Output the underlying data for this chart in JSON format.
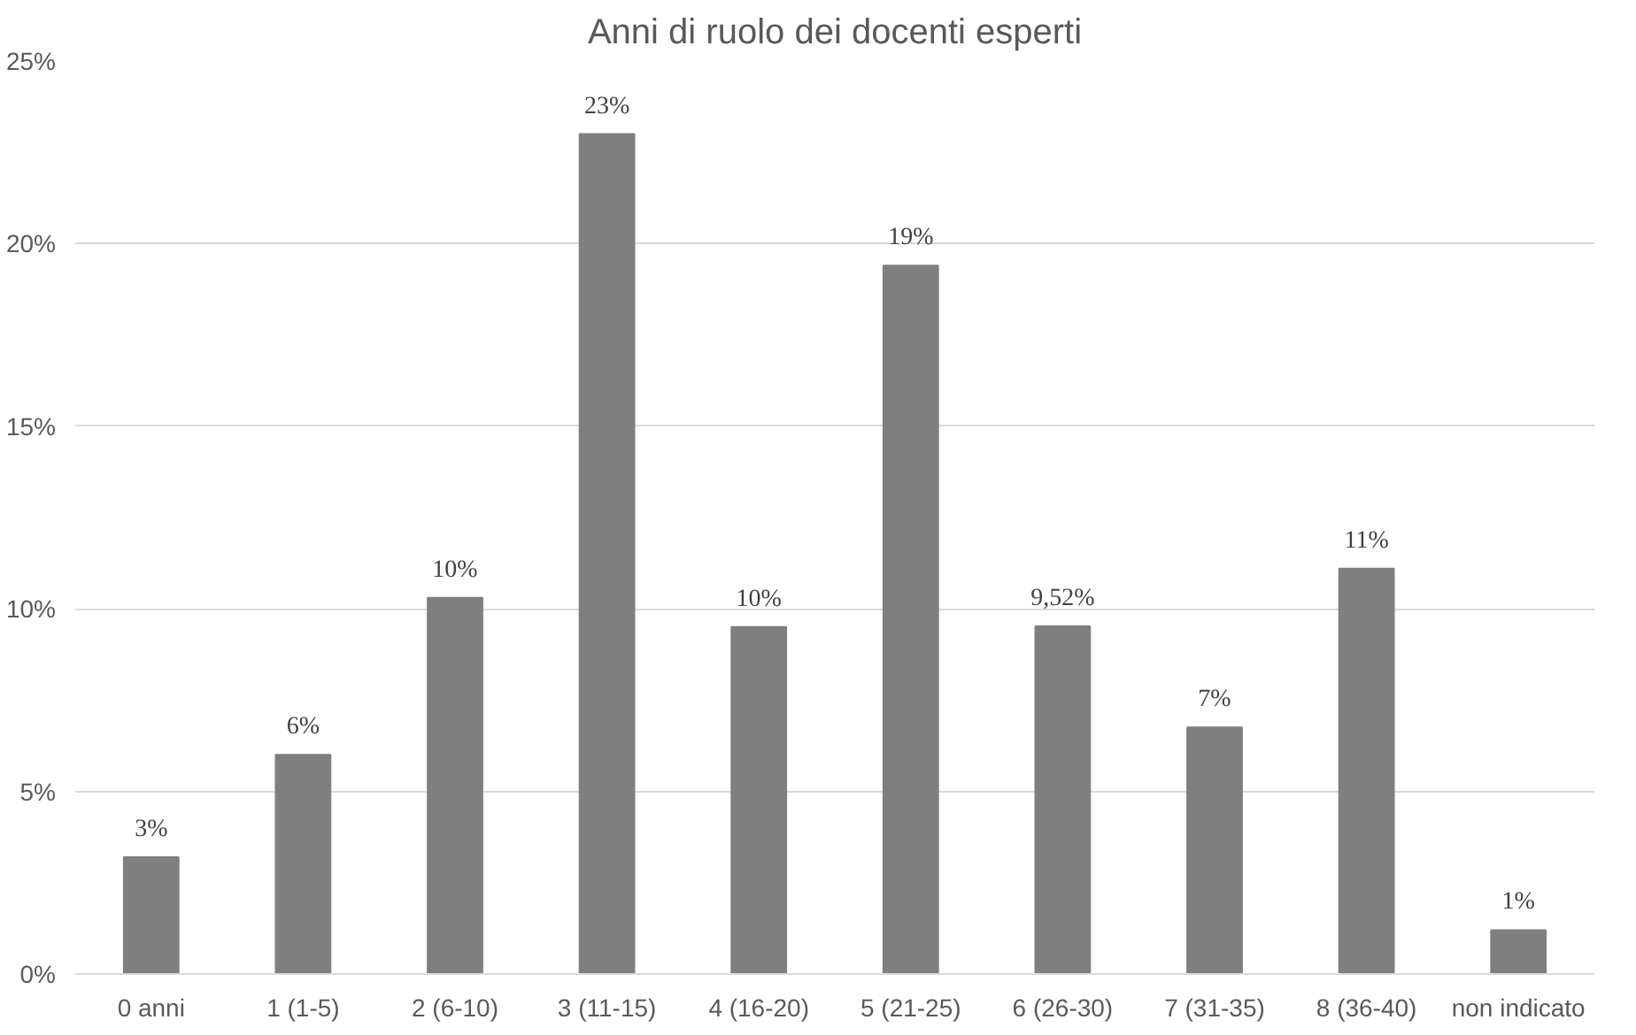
{
  "chart_data": {
    "type": "bar",
    "title": "Anni di ruolo dei docenti esperti",
    "categories": [
      "0 anni",
      "1 (1-5)",
      "2 (6-10)",
      "3 (11-15)",
      "4 (16-20)",
      "5 (21-25)",
      "6 (26-30)",
      "7 (31-35)",
      "8 (36-40)",
      "non indicato"
    ],
    "values": [
      3.2,
      6.0,
      10.3,
      23.0,
      9.5,
      19.4,
      9.52,
      6.75,
      11.1,
      1.2
    ],
    "value_labels": [
      "3%",
      "6%",
      "10%",
      "23%",
      "10%",
      "19%",
      "9,52%",
      "7%",
      "11%",
      "1%"
    ],
    "color": "#7f7f7f",
    "ylim": [
      0,
      25
    ],
    "yticks": [
      {
        "value": 0,
        "label": "0%"
      },
      {
        "value": 5,
        "label": "5%"
      },
      {
        "value": 10,
        "label": "10%"
      },
      {
        "value": 15,
        "label": "15%"
      },
      {
        "value": 20,
        "label": "20%"
      },
      {
        "value": 25,
        "label": "25%"
      }
    ],
    "grid": "y"
  }
}
